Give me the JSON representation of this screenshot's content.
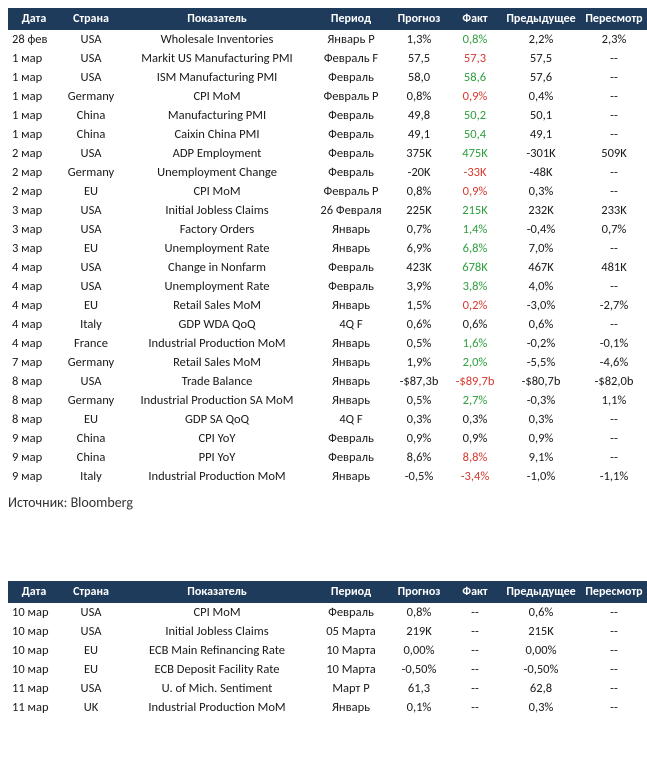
{
  "colors": {
    "header_bg": "#1f3b5c",
    "header_text": "#ffffff",
    "body_text": "#1a1a1a",
    "positive": "#2e9e3f",
    "negative": "#d43a2f",
    "background": "#ffffff"
  },
  "columns": [
    {
      "key": "date",
      "label": "Дата"
    },
    {
      "key": "country",
      "label": "Страна"
    },
    {
      "key": "indicator",
      "label": "Показатель"
    },
    {
      "key": "period",
      "label": "Период"
    },
    {
      "key": "forecast",
      "label": "Прогноз"
    },
    {
      "key": "actual",
      "label": "Факт"
    },
    {
      "key": "previous",
      "label": "Предыдущее"
    },
    {
      "key": "revision",
      "label": "Пересмотр"
    }
  ],
  "table1": [
    {
      "date": "28 фев",
      "country": "USA",
      "indicator": "Wholesale Inventories",
      "period": "Январь P",
      "forecast": "1,3%",
      "actual": "0,8%",
      "actual_c": "green",
      "previous": "2,2%",
      "revision": "2,3%"
    },
    {
      "date": "1 мар",
      "country": "USA",
      "indicator": "Markit US Manufacturing PMI",
      "period": "Февраль F",
      "forecast": "57,5",
      "actual": "57,3",
      "actual_c": "red",
      "previous": "57,5",
      "revision": "--"
    },
    {
      "date": "1 мар",
      "country": "USA",
      "indicator": "ISM Manufacturing PMI",
      "period": "Февраль",
      "forecast": "58,0",
      "actual": "58,6",
      "actual_c": "green",
      "previous": "57,6",
      "revision": "--"
    },
    {
      "date": "1 мар",
      "country": "Germany",
      "indicator": "CPI MoM",
      "period": "Февраль P",
      "forecast": "0,8%",
      "actual": "0,9%",
      "actual_c": "red",
      "previous": "0,4%",
      "revision": "--"
    },
    {
      "date": "1 мар",
      "country": "China",
      "indicator": "Manufacturing PMI",
      "period": "Февраль",
      "forecast": "49,8",
      "actual": "50,2",
      "actual_c": "green",
      "previous": "50,1",
      "revision": "--"
    },
    {
      "date": "1 мар",
      "country": "China",
      "indicator": "Caixin China PMI",
      "period": "Февраль",
      "forecast": "49,1",
      "actual": "50,4",
      "actual_c": "green",
      "previous": "49,1",
      "revision": "--"
    },
    {
      "date": "2 мар",
      "country": "USA",
      "indicator": "ADP Employment",
      "period": "Февраль",
      "forecast": "375K",
      "actual": "475K",
      "actual_c": "green",
      "previous": "-301K",
      "revision": "509K"
    },
    {
      "date": "2 мар",
      "country": "Germany",
      "indicator": "Unemployment Change",
      "period": "Февраль",
      "forecast": "-20K",
      "actual": "-33K",
      "actual_c": "red",
      "previous": "-48K",
      "revision": "--"
    },
    {
      "date": "2 мар",
      "country": "EU",
      "indicator": "CPI MoM",
      "period": "Февраль P",
      "forecast": "0,8%",
      "actual": "0,9%",
      "actual_c": "red",
      "previous": "0,3%",
      "revision": "--"
    },
    {
      "date": "3 мар",
      "country": "USA",
      "indicator": "Initial Jobless Claims",
      "period": "26 Февраля",
      "forecast": "225K",
      "actual": "215K",
      "actual_c": "green",
      "previous": "232K",
      "revision": "233K"
    },
    {
      "date": "3 мар",
      "country": "USA",
      "indicator": "Factory Orders",
      "period": "Январь",
      "forecast": "0,7%",
      "actual": "1,4%",
      "actual_c": "green",
      "previous": "-0,4%",
      "revision": "0,7%"
    },
    {
      "date": "3 мар",
      "country": "EU",
      "indicator": "Unemployment Rate",
      "period": "Январь",
      "forecast": "6,9%",
      "actual": "6,8%",
      "actual_c": "green",
      "previous": "7,0%",
      "revision": "--"
    },
    {
      "date": "4 мар",
      "country": "USA",
      "indicator": "Change in Nonfarm",
      "period": "Февраль",
      "forecast": "423K",
      "actual": "678K",
      "actual_c": "green",
      "previous": "467K",
      "revision": "481K"
    },
    {
      "date": "4 мар",
      "country": "USA",
      "indicator": "Unemployment Rate",
      "period": "Февраль",
      "forecast": "3,9%",
      "actual": "3,8%",
      "actual_c": "green",
      "previous": "4,0%",
      "revision": "--"
    },
    {
      "date": "4 мар",
      "country": "EU",
      "indicator": "Retail Sales MoM",
      "period": "Январь",
      "forecast": "1,5%",
      "actual": "0,2%",
      "actual_c": "red",
      "previous": "-3,0%",
      "revision": "-2,7%"
    },
    {
      "date": "4 мар",
      "country": "Italy",
      "indicator": "GDP WDA QoQ",
      "period": "4Q F",
      "forecast": "0,6%",
      "actual": "0,6%",
      "actual_c": "",
      "previous": "0,6%",
      "revision": "--"
    },
    {
      "date": "4 мар",
      "country": "France",
      "indicator": "Industrial Production MoM",
      "period": "Январь",
      "forecast": "0,5%",
      "actual": "1,6%",
      "actual_c": "green",
      "previous": "-0,2%",
      "revision": "-0,1%"
    },
    {
      "date": "7 мар",
      "country": "Germany",
      "indicator": "Retail Sales MoM",
      "period": "Январь",
      "forecast": "1,9%",
      "actual": "2,0%",
      "actual_c": "green",
      "previous": "-5,5%",
      "revision": "-4,6%"
    },
    {
      "date": "8 мар",
      "country": "USA",
      "indicator": "Trade Balance",
      "period": "Январь",
      "forecast": "-$87,3b",
      "actual": "-$89,7b",
      "actual_c": "red",
      "previous": "-$80,7b",
      "revision": "-$82,0b"
    },
    {
      "date": "8 мар",
      "country": "Germany",
      "indicator": "Industrial Production SA MoM",
      "period": "Январь",
      "forecast": "0,5%",
      "actual": "2,7%",
      "actual_c": "green",
      "previous": "-0,3%",
      "revision": "1,1%"
    },
    {
      "date": "8 мар",
      "country": "EU",
      "indicator": "GDP SA QoQ",
      "period": "4Q F",
      "forecast": "0,3%",
      "actual": "0,3%",
      "actual_c": "",
      "previous": "0,3%",
      "revision": "--"
    },
    {
      "date": "9 мар",
      "country": "China",
      "indicator": "CPI YoY",
      "period": "Февраль",
      "forecast": "0,9%",
      "actual": "0,9%",
      "actual_c": "",
      "previous": "0,9%",
      "revision": "--"
    },
    {
      "date": "9 мар",
      "country": "China",
      "indicator": "PPI YoY",
      "period": "Февраль",
      "forecast": "8,6%",
      "actual": "8,8%",
      "actual_c": "red",
      "previous": "9,1%",
      "revision": "--"
    },
    {
      "date": "9 мар",
      "country": "Italy",
      "indicator": "Industrial Production MoM",
      "period": "Январь",
      "forecast": "-0,5%",
      "actual": "-3,4%",
      "actual_c": "red",
      "previous": "-1,0%",
      "revision": "-1,1%"
    }
  ],
  "source_label": "Источник: Bloomberg",
  "table2": [
    {
      "date": "10 мар",
      "country": "USA",
      "indicator": "CPI MoM",
      "period": "Февраль",
      "forecast": "0,8%",
      "actual": "--",
      "actual_c": "",
      "previous": "0,6%",
      "revision": "--"
    },
    {
      "date": "10 мар",
      "country": "USA",
      "indicator": "Initial Jobless Claims",
      "period": "05 Марта",
      "forecast": "219K",
      "actual": "--",
      "actual_c": "",
      "previous": "215K",
      "revision": "--"
    },
    {
      "date": "10 мар",
      "country": "EU",
      "indicator": "ECB Main Refinancing Rate",
      "period": "10 Марта",
      "forecast": "0,00%",
      "actual": "--",
      "actual_c": "",
      "previous": "0,00%",
      "revision": "--"
    },
    {
      "date": "10 мар",
      "country": "EU",
      "indicator": "ECB Deposit Facility Rate",
      "period": "10 Марта",
      "forecast": "-0,50%",
      "actual": "--",
      "actual_c": "",
      "previous": "-0,50%",
      "revision": "--"
    },
    {
      "date": "11 мар",
      "country": "USA",
      "indicator": "U. of Mich. Sentiment",
      "period": "Март P",
      "forecast": "61,3",
      "actual": "--",
      "actual_c": "",
      "previous": "62,8",
      "revision": "--"
    },
    {
      "date": "11 мар",
      "country": "UK",
      "indicator": "Industrial Production MoM",
      "period": "Январь",
      "forecast": "0,1%",
      "actual": "--",
      "actual_c": "",
      "previous": "0,3%",
      "revision": "--"
    }
  ]
}
